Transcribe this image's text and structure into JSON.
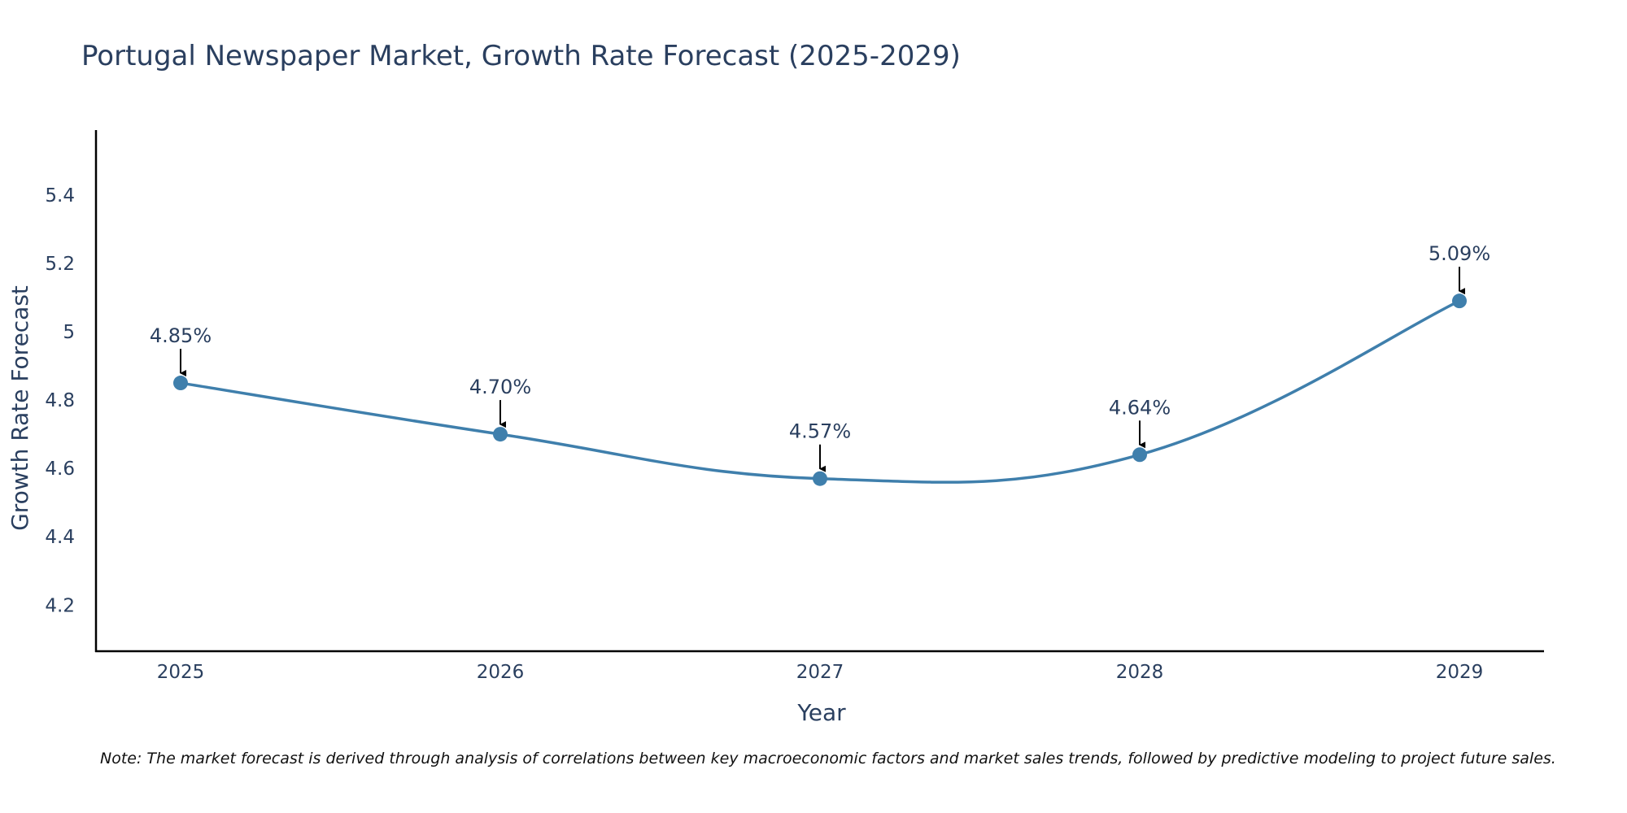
{
  "chart_data": {
    "type": "line",
    "title": "Portugal Newspaper Market, Growth Rate Forecast (2025-2029)",
    "xlabel": "Year",
    "ylabel": "Growth Rate Forecast",
    "x": [
      "2025",
      "2026",
      "2027",
      "2028",
      "2029"
    ],
    "series": [
      {
        "name": "Growth Rate Forecast",
        "values": [
          4.85,
          4.7,
          4.57,
          4.64,
          5.09
        ]
      }
    ],
    "annotations": [
      "4.85%",
      "4.70%",
      "4.57%",
      "4.64%",
      "5.09%"
    ],
    "ylim": [
      4.065,
      5.59
    ],
    "yticks": [
      4.2,
      4.4,
      4.6,
      4.8,
      5.0,
      5.2,
      5.4
    ],
    "ytick_labels": [
      "4.2",
      "4.4",
      "4.6",
      "4.8",
      "5",
      "5.2",
      "5.4"
    ],
    "grid": false,
    "legend": "none",
    "line_color": "#3f7fac",
    "marker_color": "#3f7fac",
    "arrow_color": "#000000",
    "note": "Note: The market forecast is derived through analysis of correlations between key macroeconomic factors and market sales trends, followed by predictive modeling to project future sales."
  }
}
